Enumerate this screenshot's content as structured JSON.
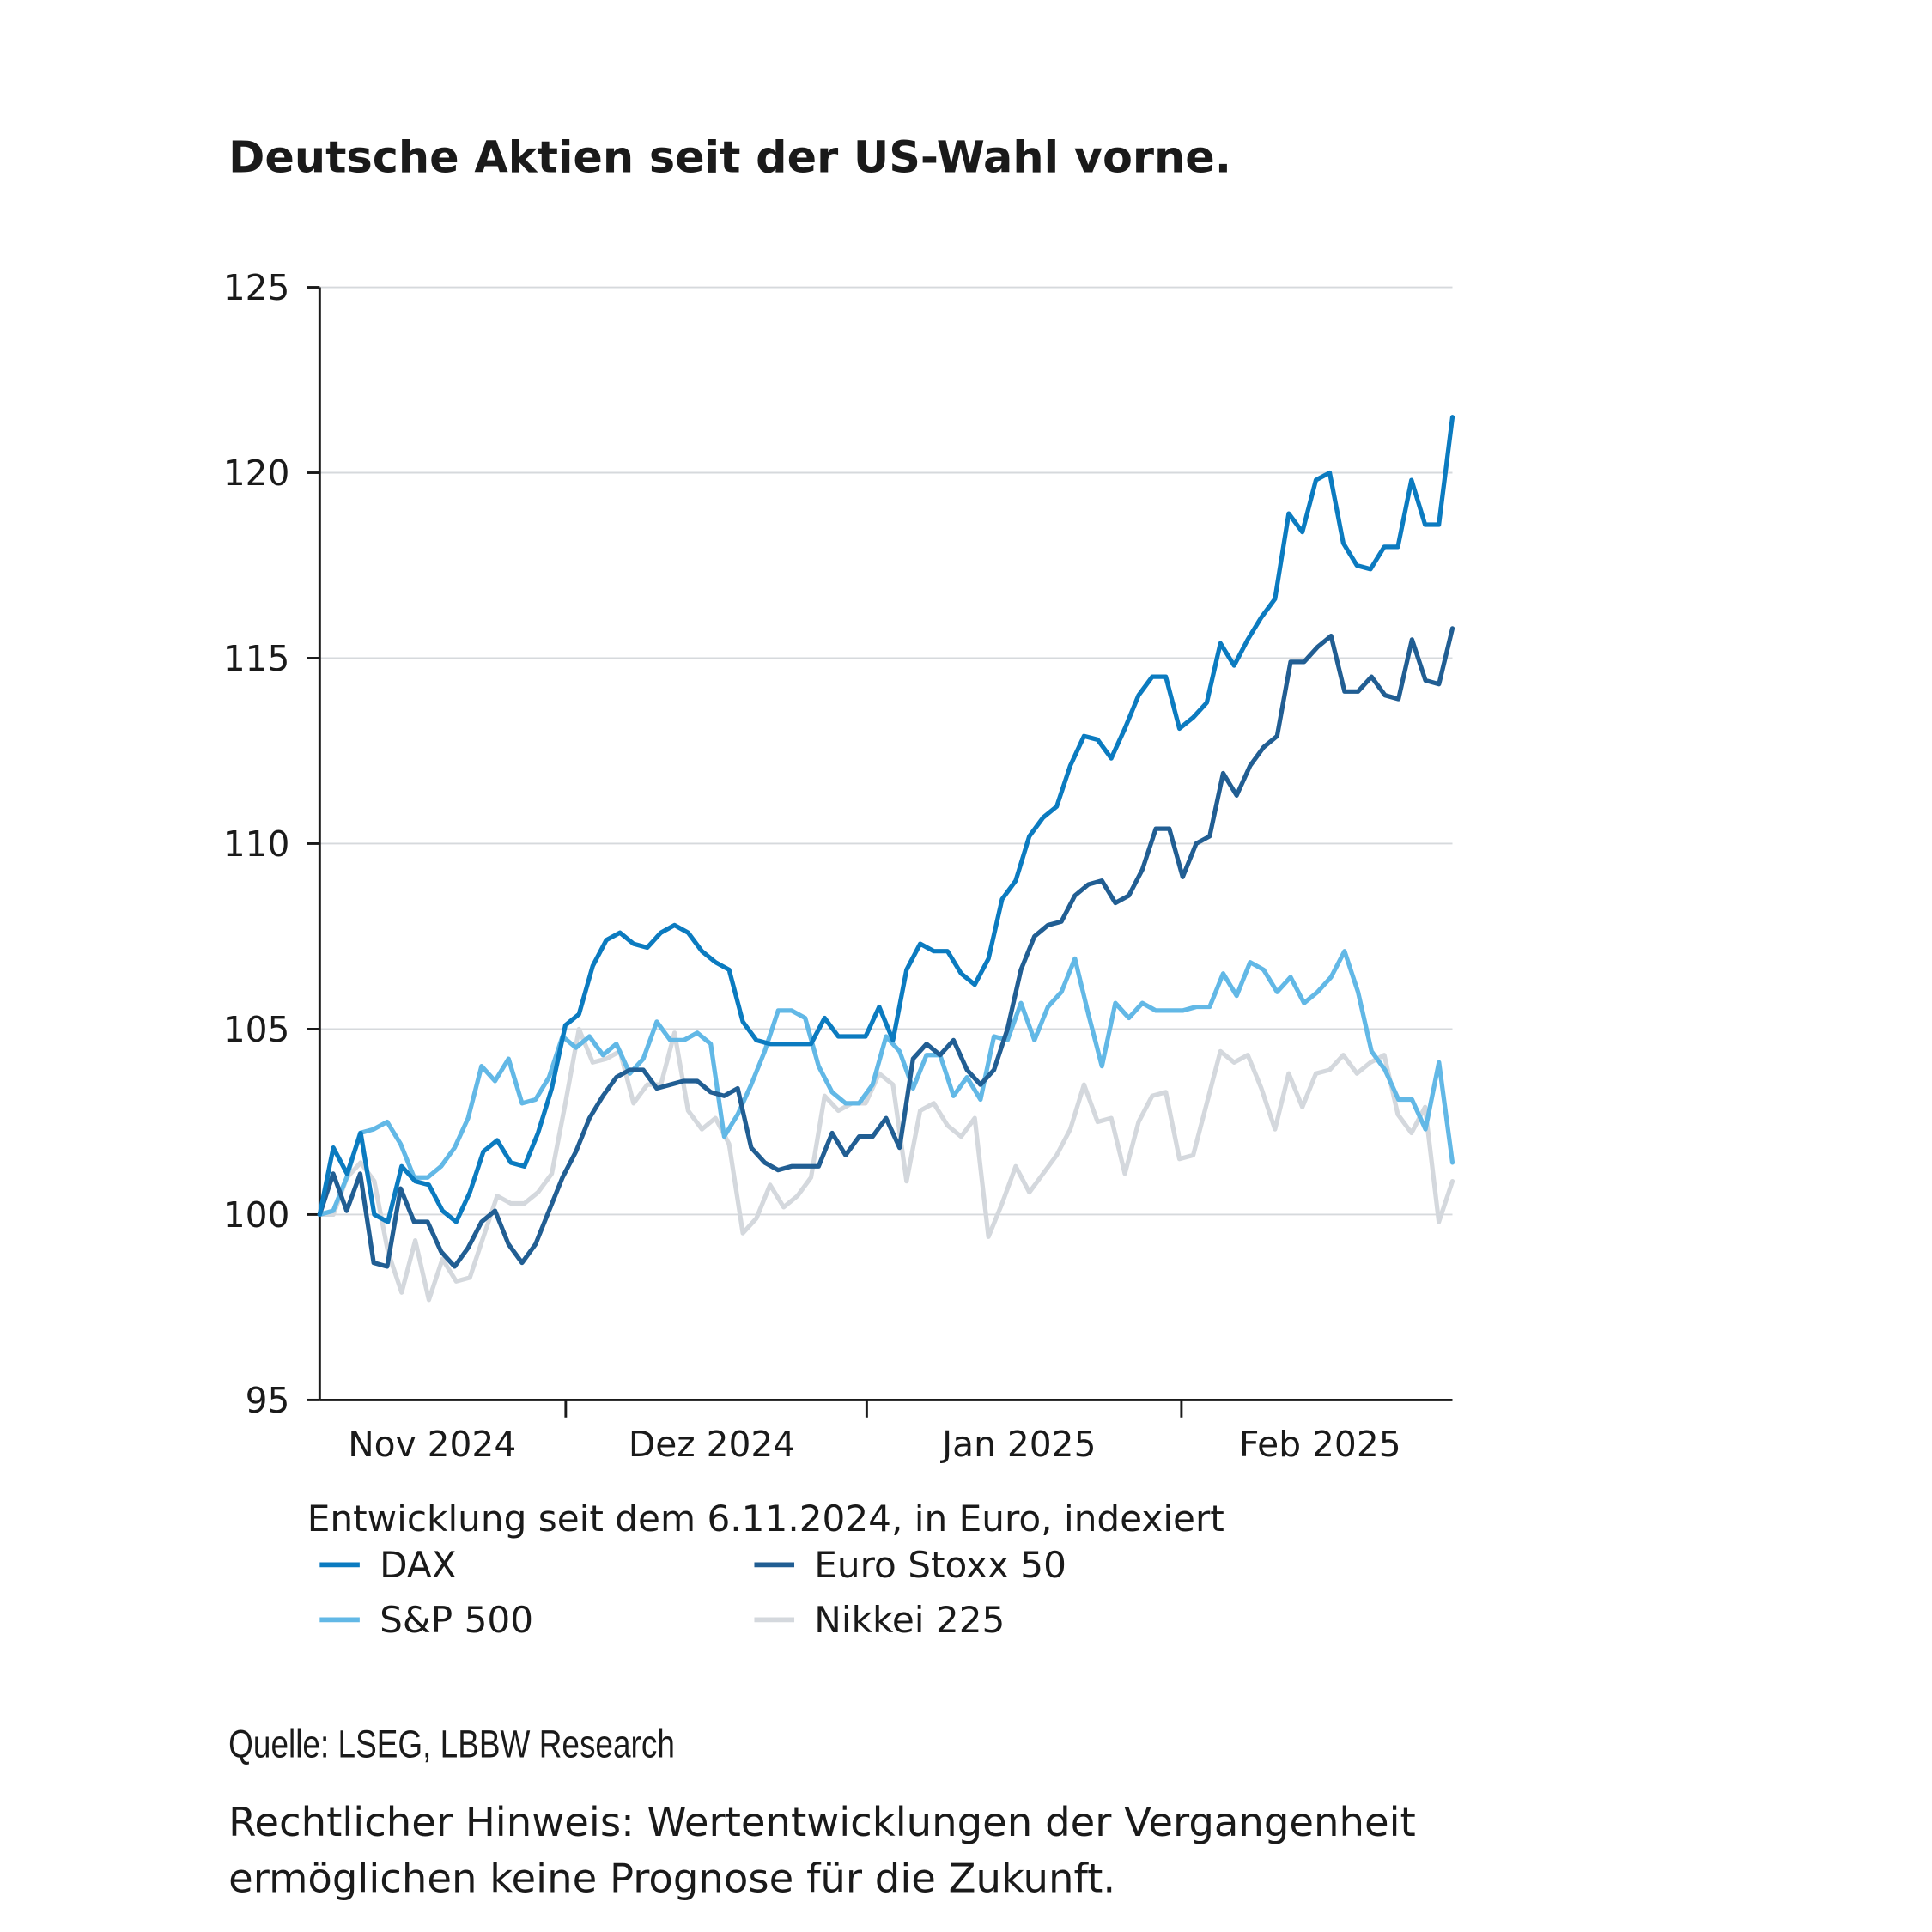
{
  "title": "Deutsche Aktien seit der US-Wahl vorne.",
  "subtitle": "Entwicklung seit dem 6.11.2024, in Euro, indexiert",
  "source": "Quelle: LSEG, LBBW Research",
  "note_line1": "Rechtlicher Hinweis: Wertentwicklungen der Vergangenheit",
  "note_line2": "ermöglichen keine Prognose für die Zukunft.",
  "chart_data": {
    "type": "line",
    "title": "Deutsche Aktien seit der US-Wahl vorne.",
    "xlabel": "",
    "ylabel": "",
    "ylim": [
      95,
      125
    ],
    "yticks": [
      "95",
      "100",
      "105",
      "110",
      "115",
      "120",
      "125"
    ],
    "xticks": [
      "Nov 2024",
      "Dez 2024",
      "Jan 2025",
      "Feb 2025"
    ],
    "grid": true,
    "legend_position": "bottom",
    "series": [
      {
        "name": "DAX",
        "color": "#0b7bc0",
        "values": [
          100,
          101.8,
          101.1,
          102.2,
          100,
          99.8,
          101.3,
          100.9,
          100.8,
          100.1,
          99.8,
          100.6,
          101.7,
          102.0,
          101.4,
          101.3,
          102.2,
          103.4,
          105.1,
          105.4,
          106.7,
          107.4,
          107.6,
          107.3,
          107.2,
          107.6,
          107.8,
          107.6,
          107.1,
          106.8,
          106.6,
          105.2,
          104.7,
          104.6,
          104.6,
          104.6,
          104.6,
          105.3,
          104.8,
          104.8,
          104.8,
          105.6,
          104.7,
          106.6,
          107.3,
          107.1,
          107.1,
          106.5,
          106.2,
          106.9,
          108.5,
          109.0,
          110.2,
          110.7,
          111.0,
          112.1,
          112.9,
          112.8,
          112.3,
          113.1,
          114.0,
          114.5,
          114.5,
          113.1,
          113.4,
          113.8,
          115.4,
          114.8,
          115.5,
          116.1,
          116.6,
          118.9,
          118.4,
          119.8,
          120.0,
          118.1,
          117.5,
          117.4,
          118.0,
          118.0,
          119.8,
          118.6,
          118.6,
          121.5
        ]
      },
      {
        "name": "Euro Stoxx 50",
        "color": "#215e93",
        "values": [
          100,
          101.1,
          100.1,
          101.1,
          98.7,
          98.6,
          100.7,
          99.8,
          99.8,
          99.0,
          98.6,
          99.1,
          99.8,
          100.1,
          99.2,
          98.7,
          99.2,
          100.1,
          101.0,
          101.7,
          102.6,
          103.2,
          103.7,
          103.9,
          103.9,
          103.4,
          103.5,
          103.6,
          103.6,
          103.3,
          103.2,
          103.4,
          101.8,
          101.4,
          101.2,
          101.3,
          101.3,
          101.3,
          102.2,
          101.6,
          102.1,
          102.1,
          102.6,
          101.8,
          104.2,
          104.6,
          104.3,
          104.7,
          103.9,
          103.5,
          103.9,
          105.0,
          106.6,
          107.5,
          107.8,
          107.9,
          108.6,
          108.9,
          109.0,
          108.4,
          108.6,
          109.3,
          110.4,
          110.4,
          109.1,
          110.0,
          110.2,
          111.9,
          111.3,
          112.1,
          112.6,
          112.9,
          114.9,
          114.9,
          115.3,
          115.6,
          114.1,
          114.1,
          114.5,
          114.0,
          113.9,
          115.5,
          114.4,
          114.3,
          115.8
        ]
      },
      {
        "name": "S&P 500",
        "color": "#62b8e6",
        "values": [
          100,
          100.1,
          101.0,
          102.2,
          102.3,
          102.5,
          101.9,
          101.0,
          101.0,
          101.3,
          101.8,
          102.6,
          104.0,
          103.6,
          104.2,
          103.0,
          103.1,
          103.7,
          104.8,
          104.5,
          104.8,
          104.3,
          104.6,
          103.8,
          104.2,
          105.2,
          104.7,
          104.7,
          104.9,
          104.6,
          102.1,
          102.7,
          103.5,
          104.4,
          105.5,
          105.5,
          105.3,
          104.0,
          103.3,
          103.0,
          103.0,
          103.5,
          104.8,
          104.4,
          103.4,
          104.3,
          104.3,
          103.2,
          103.7,
          103.1,
          104.8,
          104.7,
          105.7,
          104.7,
          105.6,
          106.0,
          106.9,
          105.4,
          104.0,
          105.7,
          105.3,
          105.7,
          105.5,
          105.5,
          105.5,
          105.6,
          105.6,
          106.5,
          105.9,
          106.8,
          106.6,
          106.0,
          106.4,
          105.7,
          106.0,
          106.4,
          107.1,
          106.0,
          104.4,
          103.9,
          103.1,
          103.1,
          102.3,
          104.1,
          101.4
        ]
      },
      {
        "name": "Nikkei 225",
        "color": "#d4d8dd",
        "values": [
          100,
          100.0,
          101.0,
          101.4,
          100.9,
          99.0,
          97.9,
          99.3,
          97.7,
          98.8,
          98.2,
          98.3,
          99.4,
          100.5,
          100.3,
          100.3,
          100.6,
          101.1,
          103.0,
          105.0,
          104.1,
          104.2,
          104.4,
          103.0,
          103.5,
          103.5,
          104.9,
          102.8,
          102.3,
          102.6,
          101.9,
          99.5,
          99.9,
          100.8,
          100.2,
          100.5,
          101.0,
          103.2,
          102.8,
          103.0,
          103.0,
          103.8,
          103.5,
          100.9,
          102.8,
          103.0,
          102.4,
          102.1,
          102.6,
          99.4,
          100.3,
          101.3,
          100.6,
          101.1,
          101.6,
          102.3,
          103.5,
          102.5,
          102.6,
          101.1,
          102.5,
          103.2,
          103.3,
          101.5,
          101.6,
          103.0,
          104.4,
          104.1,
          104.3,
          103.4,
          102.3,
          103.8,
          102.9,
          103.8,
          103.9,
          104.3,
          103.8,
          104.1,
          104.3,
          102.7,
          102.2,
          102.9,
          99.8,
          100.9
        ]
      }
    ]
  }
}
